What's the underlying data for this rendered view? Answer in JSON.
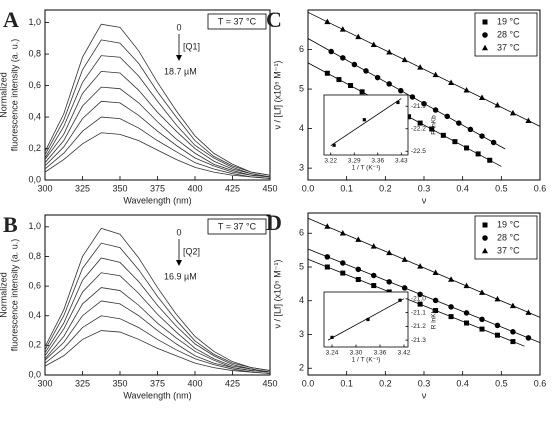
{
  "chart_data": [
    {
      "type": "line",
      "panel_label": "A",
      "box_label": "T = 37 °C",
      "annotations": [
        "0",
        "[Q1]",
        "18.7 µM"
      ],
      "xlabel": "Wavelength (nm)",
      "ylabel": [
        "Normalized",
        "fluorescence intensity (a. u.)"
      ],
      "color": "#333333",
      "x": [
        300,
        312.5,
        325,
        337.5,
        350,
        362.5,
        375,
        387.5,
        400,
        412.5,
        425,
        437.5,
        450
      ],
      "series": [
        {
          "values": [
            0.18,
            0.42,
            0.78,
            0.99,
            0.97,
            0.82,
            0.62,
            0.44,
            0.28,
            0.17,
            0.1,
            0.05,
            0.03
          ]
        },
        {
          "values": [
            0.16,
            0.38,
            0.7,
            0.89,
            0.87,
            0.74,
            0.56,
            0.4,
            0.25,
            0.15,
            0.09,
            0.05,
            0.03
          ]
        },
        {
          "values": [
            0.14,
            0.34,
            0.62,
            0.79,
            0.78,
            0.66,
            0.5,
            0.35,
            0.22,
            0.14,
            0.08,
            0.04,
            0.02
          ]
        },
        {
          "values": [
            0.13,
            0.29,
            0.55,
            0.69,
            0.68,
            0.57,
            0.43,
            0.31,
            0.2,
            0.12,
            0.07,
            0.04,
            0.02
          ]
        },
        {
          "values": [
            0.11,
            0.25,
            0.47,
            0.59,
            0.58,
            0.49,
            0.37,
            0.26,
            0.17,
            0.1,
            0.06,
            0.03,
            0.02
          ]
        },
        {
          "values": [
            0.09,
            0.21,
            0.39,
            0.5,
            0.49,
            0.41,
            0.31,
            0.22,
            0.14,
            0.09,
            0.05,
            0.03,
            0.02
          ]
        },
        {
          "values": [
            0.07,
            0.17,
            0.31,
            0.4,
            0.39,
            0.33,
            0.25,
            0.18,
            0.11,
            0.07,
            0.04,
            0.02,
            0.01
          ]
        },
        {
          "values": [
            0.05,
            0.13,
            0.23,
            0.3,
            0.29,
            0.25,
            0.19,
            0.13,
            0.08,
            0.05,
            0.03,
            0.02,
            0.01
          ]
        }
      ],
      "xlim": [
        300,
        450
      ],
      "xticks": [
        300,
        325,
        350,
        375,
        400,
        425,
        450
      ],
      "ylim": [
        0,
        1.08
      ],
      "yticks": [
        {
          "value": 0,
          "label": "0,0"
        },
        {
          "value": 0.2,
          "label": "0,2"
        },
        {
          "value": 0.4,
          "label": "0,4"
        },
        {
          "value": 0.6,
          "label": "0,6"
        },
        {
          "value": 0.8,
          "label": "0,8"
        },
        {
          "value": 1,
          "label": "1,0"
        }
      ]
    },
    {
      "type": "line",
      "panel_label": "B",
      "box_label": "T = 37 °C",
      "annotations": [
        "0",
        "[Q2]",
        "16.9 µM"
      ],
      "xlabel": "Wavelength (nm)",
      "ylabel": [
        "Normalized",
        "fluorescence intensity (a. u.)"
      ],
      "color": "#333333",
      "x": [
        300,
        312.5,
        325,
        337.5,
        350,
        362.5,
        375,
        387.5,
        400,
        412.5,
        425,
        437.5,
        450
      ],
      "series": [
        {
          "values": [
            0.19,
            0.44,
            0.8,
            0.99,
            0.95,
            0.79,
            0.59,
            0.41,
            0.26,
            0.16,
            0.09,
            0.05,
            0.03
          ]
        },
        {
          "values": [
            0.17,
            0.4,
            0.72,
            0.89,
            0.86,
            0.71,
            0.53,
            0.37,
            0.23,
            0.14,
            0.08,
            0.05,
            0.03
          ]
        },
        {
          "values": [
            0.15,
            0.35,
            0.64,
            0.79,
            0.76,
            0.63,
            0.47,
            0.33,
            0.21,
            0.13,
            0.07,
            0.04,
            0.02
          ]
        },
        {
          "values": [
            0.13,
            0.31,
            0.56,
            0.69,
            0.67,
            0.55,
            0.41,
            0.29,
            0.18,
            0.11,
            0.06,
            0.04,
            0.02
          ]
        },
        {
          "values": [
            0.11,
            0.26,
            0.48,
            0.59,
            0.57,
            0.47,
            0.35,
            0.25,
            0.16,
            0.1,
            0.05,
            0.03,
            0.02
          ]
        },
        {
          "values": [
            0.1,
            0.22,
            0.4,
            0.5,
            0.48,
            0.4,
            0.3,
            0.21,
            0.13,
            0.08,
            0.05,
            0.03,
            0.02
          ]
        },
        {
          "values": [
            0.08,
            0.18,
            0.32,
            0.4,
            0.38,
            0.32,
            0.24,
            0.17,
            0.11,
            0.07,
            0.04,
            0.02,
            0.01
          ]
        },
        {
          "values": [
            0.06,
            0.13,
            0.24,
            0.3,
            0.29,
            0.24,
            0.18,
            0.13,
            0.08,
            0.05,
            0.03,
            0.02,
            0.01
          ]
        }
      ],
      "xlim": [
        300,
        450
      ],
      "xticks": [
        300,
        325,
        350,
        375,
        400,
        425,
        450
      ],
      "ylim": [
        0,
        1.08
      ],
      "yticks": [
        {
          "value": 0,
          "label": "0,0"
        },
        {
          "value": 0.2,
          "label": "0,2"
        },
        {
          "value": 0.4,
          "label": "0,4"
        },
        {
          "value": 0.6,
          "label": "0,6"
        },
        {
          "value": 0.8,
          "label": "0,8"
        },
        {
          "value": 1,
          "label": "1,0"
        }
      ]
    },
    {
      "type": "scatter",
      "panel_label": "C",
      "xlabel": "ν",
      "ylabel": [
        "ν / [Lf] (x10⁵ M⁻¹)"
      ],
      "trendline": true,
      "legend": "upper right",
      "series": [
        {
          "name": "19 °C",
          "marker": "square",
          "color": "#000000",
          "x": [
            0.05,
            0.08,
            0.11,
            0.14,
            0.17,
            0.2,
            0.23,
            0.26,
            0.29,
            0.32,
            0.35,
            0.38,
            0.41,
            0.44,
            0.47
          ],
          "values": [
            5.4,
            5.24,
            5.09,
            4.93,
            4.77,
            4.61,
            4.46,
            4.3,
            4.14,
            3.99,
            3.83,
            3.67,
            3.51,
            3.36,
            3.2
          ]
        },
        {
          "name": "28 °C",
          "marker": "circle",
          "color": "#000000",
          "x": [
            0.06,
            0.09,
            0.12,
            0.15,
            0.18,
            0.21,
            0.24,
            0.27,
            0.3,
            0.33,
            0.36,
            0.39,
            0.42,
            0.45,
            0.48
          ],
          "values": [
            5.95,
            5.79,
            5.62,
            5.46,
            5.29,
            5.13,
            4.96,
            4.8,
            4.63,
            4.47,
            4.31,
            4.14,
            3.98,
            3.81,
            3.65
          ]
        },
        {
          "name": "37 °C",
          "marker": "triangle",
          "color": "#000000",
          "x": [
            0.05,
            0.09,
            0.13,
            0.17,
            0.21,
            0.25,
            0.29,
            0.33,
            0.37,
            0.41,
            0.45,
            0.49,
            0.53,
            0.57
          ],
          "values": [
            6.7,
            6.51,
            6.32,
            6.12,
            5.93,
            5.74,
            5.55,
            5.36,
            5.16,
            4.97,
            4.78,
            4.59,
            4.39,
            4.2
          ]
        }
      ],
      "xlim": [
        0,
        0.6
      ],
      "xticks": [
        {
          "value": 0,
          "label": "0.0"
        },
        0.1,
        0.2,
        0.3,
        0.4,
        0.5,
        0.6
      ],
      "ylim": [
        2.7,
        7.0
      ],
      "yticks": [
        3,
        4,
        5,
        6
      ],
      "inset": {
        "type": "scatter",
        "xlabel": "1 / T (K⁻¹)",
        "ylabel": [
          "R lnKb"
        ],
        "y_axis_side": "right",
        "trendline": true,
        "series": [
          {
            "marker": "square",
            "color": "#000000",
            "x": [
              3.23,
              3.32,
              3.42
            ],
            "values": [
              -22.42,
              -22.08,
              -21.85
            ]
          }
        ],
        "xlim": [
          3.2,
          3.45
        ],
        "xticks": [
          3.22,
          3.29,
          3.36,
          3.43
        ],
        "ylim": [
          -22.55,
          -21.75
        ],
        "yticks": [
          -22.5,
          -22.2,
          -21.9
        ]
      }
    },
    {
      "type": "scatter",
      "panel_label": "D",
      "xlabel": "ν",
      "ylabel": [
        "ν / [Lf] (x10⁵ M⁻¹)"
      ],
      "trendline": true,
      "legend": "upper right",
      "series": [
        {
          "name": "19 °C",
          "marker": "square",
          "color": "#000000",
          "x": [
            0.05,
            0.09,
            0.13,
            0.17,
            0.21,
            0.25,
            0.29,
            0.33,
            0.37,
            0.41,
            0.45,
            0.49,
            0.53
          ],
          "values": [
            5.0,
            4.82,
            4.63,
            4.45,
            4.26,
            4.08,
            3.9,
            3.71,
            3.53,
            3.34,
            3.16,
            2.98,
            2.79
          ]
        },
        {
          "name": "28 °C",
          "marker": "circle",
          "color": "#000000",
          "x": [
            0.05,
            0.09,
            0.13,
            0.17,
            0.21,
            0.25,
            0.29,
            0.33,
            0.37,
            0.41,
            0.45,
            0.49,
            0.53,
            0.57
          ],
          "values": [
            5.3,
            5.12,
            4.93,
            4.75,
            4.56,
            4.38,
            4.19,
            4.01,
            3.82,
            3.64,
            3.45,
            3.27,
            3.08,
            2.9
          ]
        },
        {
          "name": "37 °C",
          "marker": "triangle",
          "color": "#000000",
          "x": [
            0.05,
            0.09,
            0.13,
            0.17,
            0.21,
            0.25,
            0.29,
            0.33,
            0.37,
            0.41,
            0.45,
            0.49,
            0.53,
            0.57
          ],
          "values": [
            6.2,
            6.0,
            5.81,
            5.61,
            5.42,
            5.22,
            5.02,
            4.83,
            4.63,
            4.44,
            4.24,
            4.05,
            3.85,
            3.65
          ]
        }
      ],
      "xlim": [
        0,
        0.6
      ],
      "xticks": [
        {
          "value": 0,
          "label": "0.0"
        },
        0.1,
        0.2,
        0.3,
        0.4,
        0.5,
        0.6
      ],
      "ylim": [
        1.8,
        6.6
      ],
      "yticks": [
        2,
        3,
        4,
        5,
        6
      ],
      "inset": {
        "type": "scatter",
        "xlabel": "1 / T (K⁻¹)",
        "ylabel": [
          "R lnKb"
        ],
        "y_axis_side": "right",
        "trendline": true,
        "series": [
          {
            "marker": "square",
            "color": "#000000",
            "x": [
              3.24,
              3.33,
              3.41
            ],
            "values": [
              -21.28,
              -21.15,
              -21.01
            ]
          }
        ],
        "xlim": [
          3.22,
          3.43
        ],
        "xticks": [
          3.24,
          {
            "value": 3.3,
            "label": "3.30"
          },
          3.36,
          3.42
        ],
        "ylim": [
          -21.35,
          -20.95
        ],
        "yticks": [
          {
            "value": -21.3,
            "label": "-21.3"
          },
          {
            "value": -21.2,
            "label": "-21.2"
          },
          {
            "value": -21.1,
            "label": "-21.1"
          },
          {
            "value": -21,
            "label": "-21.0"
          }
        ]
      }
    }
  ]
}
